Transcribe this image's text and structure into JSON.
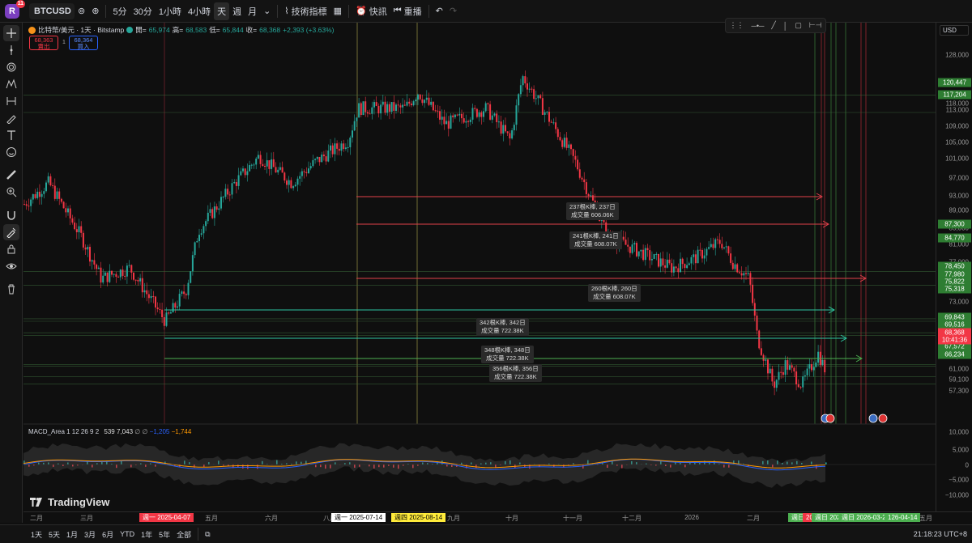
{
  "topbar": {
    "logo_letter": "R",
    "notifications": "11",
    "symbol": "BTCUSD",
    "intervals": [
      "5分",
      "30分",
      "1小時",
      "4小時",
      "天",
      "週",
      "月"
    ],
    "active_interval": "天",
    "indicators_label": "技術指標",
    "alert_label": "快訊",
    "replay_label": "重播"
  },
  "legend": {
    "title": "比特幣/美元 · 1天 · Bitstamp",
    "open_label": "開=",
    "open": "65,974",
    "high_label": "高=",
    "high": "68,583",
    "low_label": "低=",
    "low": "65,844",
    "close_label": "收=",
    "close": "68,368",
    "change": "+2,393 (+3.63%)",
    "sell_price": "68,363",
    "sell_label": "賣出",
    "spread": "1",
    "buy_price": "68,364",
    "buy_label": "買入"
  },
  "macd_legend": {
    "name": "MACD_Area 1 12 26 9 2",
    "v1": "539",
    "v2": "7,043",
    "sym": "∅ ∅",
    "v3": "−1,205",
    "v4": "−1,744"
  },
  "price_axis": {
    "currency": "USD",
    "labels": [
      "128,000",
      "123,000",
      "118,000",
      "113,000",
      "109,000",
      "105,000",
      "101,000",
      "97,000",
      "93,000",
      "89,000",
      "85,000",
      "81,000",
      "77,000",
      "73,000",
      "69,000",
      "65,000",
      "61,000",
      "59,100",
      "57,300",
      "10,000",
      "5,000",
      "0",
      "−5,000",
      "−10,000"
    ],
    "tags": {
      "t1": "120,447",
      "t2": "117,204",
      "t3": "87,300",
      "t4": "84,770",
      "t5": "78,450",
      "t6": "77,980",
      "t7": "75,822",
      "t8": "75,318",
      "t9": "69,843",
      "t10": "69,516",
      "t11": "68,368",
      "t11b": "10:41:36",
      "t12": "67,572",
      "t13": "66,234"
    }
  },
  "measure_labels": [
    {
      "l1": "237根K棒, 237日",
      "l2": "成交量 606.06K"
    },
    {
      "l1": "241根K棒, 241日",
      "l2": "成交量 608.07K"
    },
    {
      "l1": "260根K棒, 260日",
      "l2": "成交量 608.07K"
    },
    {
      "l1": "342根K棒, 342日",
      "l2": "成交量 722.38K"
    },
    {
      "l1": "348根K棒, 348日",
      "l2": "成交量 722.38K"
    },
    {
      "l1": "356根K棒, 356日",
      "l2": "成交量 722.38K"
    }
  ],
  "time_axis": {
    "labels": [
      "二月",
      "三月",
      "五月",
      "六月",
      "八月",
      "九月",
      "十月",
      "十一月",
      "十二月",
      "2026",
      "二月",
      "五月"
    ],
    "tag_start": "週一 2025-04-07",
    "tag_mid": "週一 2025-07-14",
    "tag_yellow": "週四 2025-08-14",
    "tag_e1": "週日",
    "tag_e1b": "202",
    "tag_e2": "週日 202",
    "tag_e3": "週日 2026-03-29",
    "tag_e4": "126-04-14"
  },
  "bottombar": {
    "ranges": [
      "1天",
      "5天",
      "1月",
      "3月",
      "6月",
      "YTD",
      "1年",
      "5年",
      "全部"
    ],
    "clock": "21:18:23 UTC+8"
  },
  "brand": "TradingView",
  "colors": {
    "up": "#26a69a",
    "down": "#f23645",
    "macd_blue": "#2962ff",
    "macd_orange": "#ff9800"
  }
}
